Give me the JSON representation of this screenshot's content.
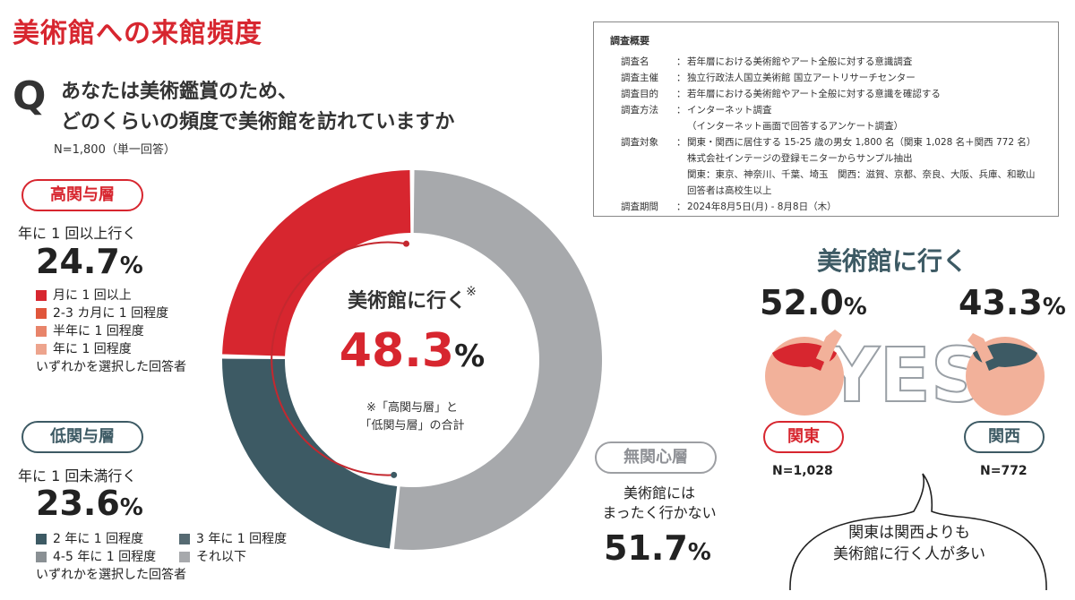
{
  "header": {
    "title": "美術館への来館頻度",
    "q_mark": "Q",
    "question_line1": "あなたは美術鑑賞のため、",
    "question_line2": "どのくらいの頻度で美術館を訪れていますか",
    "n_note": "N=1,800（単一回答）"
  },
  "high": {
    "badge": "高関与層",
    "desc": "年に 1 回以上行く",
    "value": "24.7",
    "unit": "%",
    "legend": [
      "月に 1 回以上",
      "2-3 カ月に 1 回程度",
      "半年に 1 回程度",
      "年に 1 回程度"
    ],
    "legend_colors": [
      "#d7262f",
      "#e0563b",
      "#e8846a",
      "#eda48d"
    ],
    "note": "いずれかを選択した回答者"
  },
  "low": {
    "badge": "低関与層",
    "desc": "年に 1 回未満行く",
    "value": "23.6",
    "unit": "%",
    "legend": [
      "2 年に 1 回程度",
      "3 年に 1 回程度",
      "4-5 年に 1 回程度",
      "それ以下"
    ],
    "legend_colors": [
      "#3d5a64",
      "#566a72",
      "#8a9094",
      "#a7a9ac"
    ],
    "note": "いずれかを選択した回答者"
  },
  "none": {
    "badge": "無関心層",
    "desc1": "美術館には",
    "desc2": "まったく行かない",
    "value": "51.7",
    "unit": "%"
  },
  "center": {
    "label": "美術館に行く",
    "mark": "※",
    "value": "48.3",
    "unit": "%",
    "note1": "※「高関与層」と",
    "note2": "「低関与層」の合計"
  },
  "chart_data": {
    "type": "pie",
    "donut": true,
    "labels": [
      "高関与層",
      "低関与層",
      "無関心層"
    ],
    "values": [
      24.7,
      23.6,
      51.7
    ],
    "colors": [
      "#d7262f",
      "#3d5a64",
      "#a7a9ac"
    ]
  },
  "survey": {
    "title": "調査概要",
    "rows": [
      {
        "k": "調査名",
        "v": "若年層における美術館やアート全般に対する意識調査"
      },
      {
        "k": "調査主催",
        "v": "独立行政法人国立美術館 国立アートリサーチセンター"
      },
      {
        "k": "調査目的",
        "v": "若年層における美術館やアート全般に対する意識を確認する"
      },
      {
        "k": "調査方法",
        "v": "インターネット調査"
      },
      {
        "k": "調査対象",
        "v": "関東・関西に居住する 15-25 歳の男女 1,800 名（関東 1,028 名＋関西 772 名）"
      },
      {
        "k": "調査期間",
        "v": "2024年8月5日(月) - 8月8日（木）"
      }
    ],
    "method_cont": "（インターネット画面で回答するアンケート調査）",
    "target_cont1": "株式会社インテージの登録モニターからサンプル抽出",
    "target_cont2": "関東：東京、神奈川、千葉、埼玉　関西：滋賀、京都、奈良、大阪、兵庫、和歌山",
    "target_cont3": "回答者は高校生以上"
  },
  "comparison": {
    "title": "美術館に行く",
    "yes_text": "YES",
    "kanto": {
      "label": "関東",
      "value": "52.0",
      "unit": "%",
      "n": "N=1,028"
    },
    "kansai": {
      "label": "関西",
      "value": "43.3",
      "unit": "%",
      "n": "N=772"
    },
    "conclusion1": "関東は関西よりも",
    "conclusion2": "美術館に行く人が多い"
  }
}
